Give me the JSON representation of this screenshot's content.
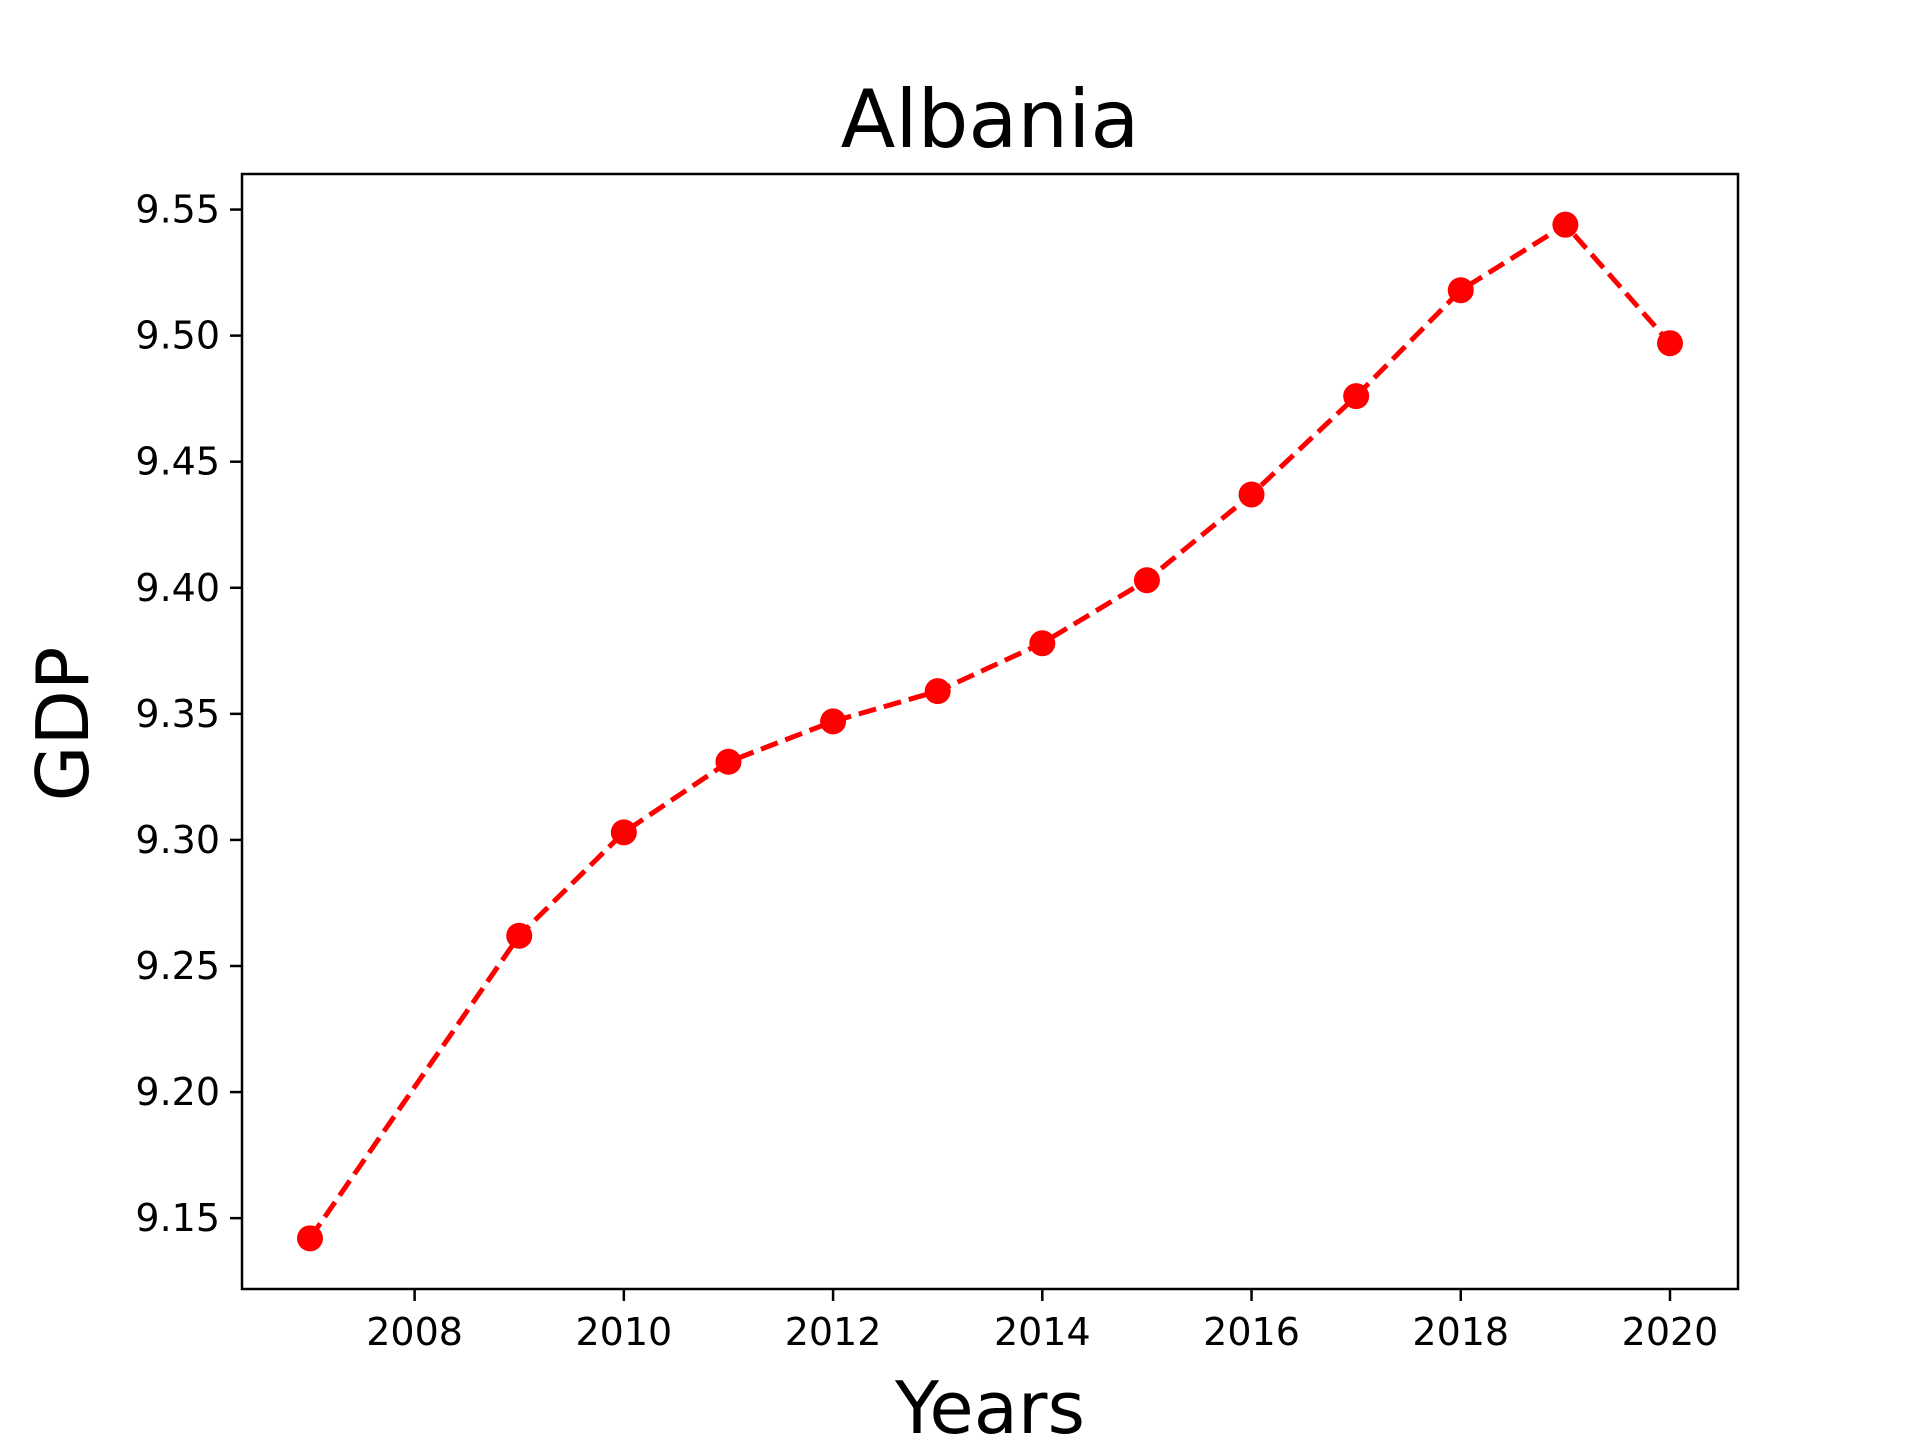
{
  "chart_data": {
    "type": "line",
    "title": "Albania",
    "xlabel": "Years",
    "ylabel": "GDP",
    "x": [
      2007,
      2009,
      2010,
      2011,
      2012,
      2013,
      2014,
      2015,
      2016,
      2017,
      2018,
      2019,
      2020
    ],
    "series": [
      {
        "values": [
          9.142,
          9.262,
          9.303,
          9.331,
          9.347,
          9.359,
          9.378,
          9.403,
          9.437,
          9.476,
          9.518,
          9.544,
          9.497
        ],
        "color": "#ff0000",
        "line_style": "dashed",
        "marker": "circle"
      }
    ],
    "xticks": [
      "2008",
      "2010",
      "2012",
      "2014",
      "2016",
      "2018",
      "2020"
    ],
    "yticks": [
      "9.15",
      "9.20",
      "9.25",
      "9.30",
      "9.35",
      "9.40",
      "9.45",
      "9.50",
      "9.55"
    ],
    "xlim": [
      2006.35,
      2020.65
    ],
    "ylim": [
      9.1219,
      9.5641
    ],
    "grid": false
  }
}
